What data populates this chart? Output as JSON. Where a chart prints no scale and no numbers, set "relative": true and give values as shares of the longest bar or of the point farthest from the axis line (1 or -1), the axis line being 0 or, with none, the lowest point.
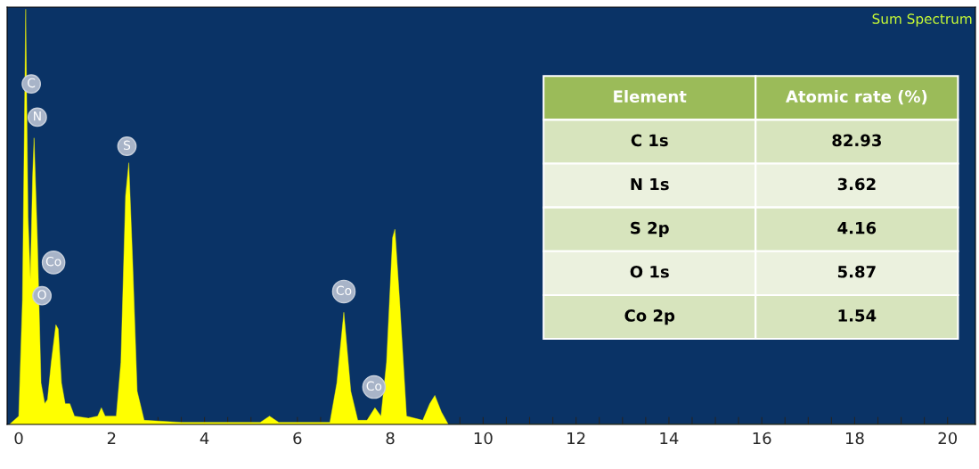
{
  "chart_data": {
    "type": "area",
    "title": "Sum Spectrum",
    "relative": true,
    "x": [
      -0.2,
      0.0,
      0.08,
      0.15,
      0.2,
      0.25,
      0.3,
      0.33,
      0.4,
      0.48,
      0.56,
      0.62,
      0.7,
      0.8,
      0.85,
      0.92,
      1.0,
      1.1,
      1.2,
      1.5,
      1.7,
      1.78,
      1.86,
      2.1,
      2.2,
      2.3,
      2.37,
      2.45,
      2.55,
      2.7,
      3.5,
      5.2,
      5.4,
      5.6,
      6.7,
      6.85,
      7.0,
      7.15,
      7.3,
      7.5,
      7.67,
      7.8,
      7.92,
      8.05,
      8.1,
      8.2,
      8.35,
      8.7,
      8.85,
      8.96,
      9.1,
      9.25,
      20.6
    ],
    "series": [
      {
        "color": "#ffff00",
        "values": [
          0,
          0.02,
          0.3,
          1.0,
          0.5,
          0.35,
          0.6,
          0.69,
          0.45,
          0.1,
          0.05,
          0.06,
          0.15,
          0.24,
          0.23,
          0.1,
          0.05,
          0.05,
          0.02,
          0.015,
          0.02,
          0.04,
          0.02,
          0.02,
          0.15,
          0.55,
          0.63,
          0.4,
          0.08,
          0.01,
          0.005,
          0.005,
          0.02,
          0.005,
          0.005,
          0.1,
          0.27,
          0.08,
          0.01,
          0.01,
          0.04,
          0.02,
          0.15,
          0.45,
          0.47,
          0.3,
          0.02,
          0.01,
          0.05,
          0.07,
          0.03,
          0.0,
          0
        ]
      }
    ],
    "xlim": [
      -0.25,
      20.6
    ],
    "xticks": [
      0,
      {
        "value": 0.5,
        "label": null
      },
      {
        "value": 1,
        "label": null
      },
      {
        "value": 1.5,
        "label": null
      },
      2,
      {
        "value": 2.5,
        "label": null
      },
      {
        "value": 3,
        "label": null
      },
      {
        "value": 3.5,
        "label": null
      },
      4,
      {
        "value": 4.5,
        "label": null
      },
      {
        "value": 5,
        "label": null
      },
      {
        "value": 5.5,
        "label": null
      },
      6,
      {
        "value": 6.5,
        "label": null
      },
      {
        "value": 7,
        "label": null
      },
      {
        "value": 7.5,
        "label": null
      },
      8,
      {
        "value": 8.5,
        "label": null
      },
      {
        "value": 9,
        "label": null
      },
      {
        "value": 9.5,
        "label": null
      },
      10,
      {
        "value": 10.5,
        "label": null
      },
      {
        "value": 11,
        "label": null
      },
      {
        "value": 11.5,
        "label": null
      },
      12,
      {
        "value": 12.5,
        "label": null
      },
      {
        "value": 13,
        "label": null
      },
      {
        "value": 13.5,
        "label": null
      },
      14,
      {
        "value": 14.5,
        "label": null
      },
      {
        "value": 15,
        "label": null
      },
      {
        "value": 15.5,
        "label": null
      },
      16,
      {
        "value": 16.5,
        "label": null
      },
      {
        "value": 17,
        "label": null
      },
      {
        "value": 17.5,
        "label": null
      },
      18,
      {
        "value": 18.5,
        "label": null
      },
      {
        "value": 19,
        "label": null
      },
      {
        "value": 19.5,
        "label": null
      },
      20
    ],
    "grid": false,
    "legend": false,
    "annotations": [
      {
        "text": "C",
        "x": 0.27,
        "y": 0.82
      },
      {
        "text": "N",
        "x": 0.4,
        "y": 0.74
      },
      {
        "text": "S",
        "x": 2.33,
        "y": 0.67
      },
      {
        "text": "Co",
        "x": 0.75,
        "y": 0.39
      },
      {
        "text": "O",
        "x": 0.5,
        "y": 0.31
      },
      {
        "text": "Co",
        "x": 7.0,
        "y": 0.32
      },
      {
        "text": "Co",
        "x": 7.65,
        "y": 0.09
      },
      "Element",
      "Atomic rate (%)",
      "C 1s",
      "82.93",
      "N 1s",
      "3.62",
      "S 2p",
      "4.16",
      "O 1s",
      "5.87",
      "Co 2p",
      "1.54"
    ]
  }
}
